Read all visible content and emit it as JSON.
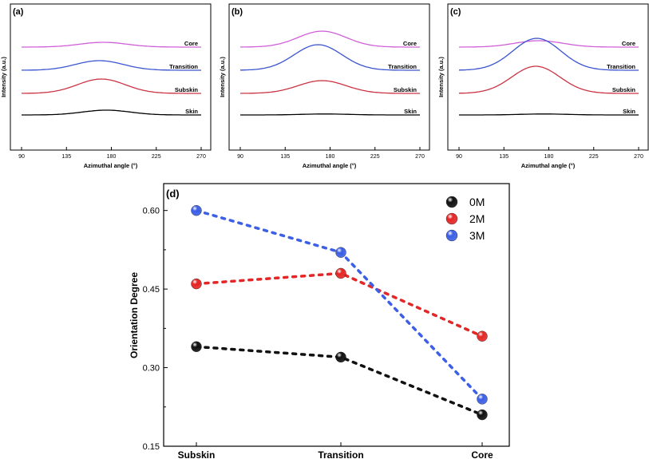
{
  "chart_data": [
    {
      "panel": "(a)",
      "type": "line",
      "xlabel": "Azimuthal angle (°)",
      "ylabel": "Intensity (a.u.)",
      "xticks": [
        90,
        135,
        180,
        225,
        270
      ],
      "xlim": [
        90,
        270
      ],
      "series": [
        {
          "name": "Core",
          "color": "#d060d8",
          "peak_center": 172,
          "peak_height": 0.15
        },
        {
          "name": "Transition",
          "color": "#3a55cf",
          "peak_center": 168,
          "peak_height": 0.3
        },
        {
          "name": "Subskin",
          "color": "#cc3344",
          "peak_center": 170,
          "peak_height": 0.45
        },
        {
          "name": "Skin",
          "color": "#000000",
          "peak_center": 175,
          "peak_height": 0.15
        }
      ]
    },
    {
      "panel": "(b)",
      "type": "line",
      "xlabel": "Azimuthal angle (°)",
      "ylabel": "Intensity (a.u.)",
      "xticks": [
        90,
        135,
        180,
        225,
        270
      ],
      "xlim": [
        90,
        270
      ],
      "series": [
        {
          "name": "Core",
          "color": "#d060d8",
          "peak_center": 172,
          "peak_height": 0.5
        },
        {
          "name": "Transition",
          "color": "#3a55cf",
          "peak_center": 168,
          "peak_height": 0.8
        },
        {
          "name": "Subskin",
          "color": "#cc3344",
          "peak_center": 172,
          "peak_height": 0.4
        },
        {
          "name": "Skin",
          "color": "#000000",
          "peak_center": 175,
          "peak_height": 0.03
        }
      ]
    },
    {
      "panel": "(c)",
      "type": "line",
      "xlabel": "Azimuthal angle (°)",
      "ylabel": "Intensity (a.u.)",
      "xticks": [
        90,
        135,
        180,
        225,
        270
      ],
      "xlim": [
        90,
        270
      ],
      "series": [
        {
          "name": "Core",
          "color": "#d060d8",
          "peak_center": 170,
          "peak_height": 0.2
        },
        {
          "name": "Transition",
          "color": "#3a55cf",
          "peak_center": 168,
          "peak_height": 1.0
        },
        {
          "name": "Subskin",
          "color": "#cc3344",
          "peak_center": 167,
          "peak_height": 0.85
        },
        {
          "name": "Skin",
          "color": "#000000",
          "peak_center": 175,
          "peak_height": 0.03
        }
      ]
    },
    {
      "panel": "(d)",
      "type": "scatter",
      "xlabel": "",
      "ylabel": "Orientation Degree",
      "categories": [
        "Subskin",
        "Transition",
        "Core"
      ],
      "yticks": [
        "0.15",
        "0.30",
        "0.45",
        "0.60"
      ],
      "ylim": [
        0.15,
        0.63
      ],
      "legend_position": "top-right",
      "series": [
        {
          "name": "0M",
          "color": "#111111",
          "values": [
            0.34,
            0.32,
            0.21
          ]
        },
        {
          "name": "2M",
          "color": "#e52626",
          "values": [
            0.46,
            0.48,
            0.36
          ]
        },
        {
          "name": "3M",
          "color": "#3c5fe6",
          "values": [
            0.6,
            0.52,
            0.24
          ]
        }
      ]
    }
  ]
}
